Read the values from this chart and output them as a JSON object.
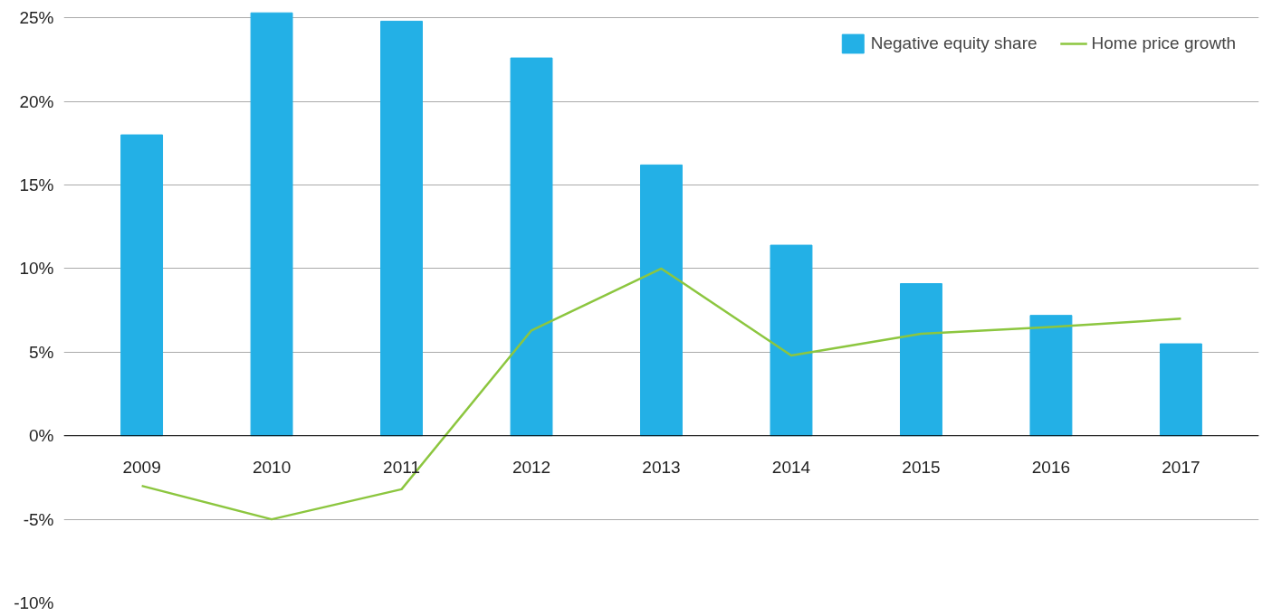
{
  "chart_data": {
    "type": "bar",
    "categories": [
      "2009",
      "2010",
      "2011",
      "2012",
      "2013",
      "2014",
      "2015",
      "2016",
      "2017"
    ],
    "series": [
      {
        "name": "Negative equity share",
        "color": "#23b0e6",
        "values": [
          18.0,
          25.3,
          24.8,
          22.6,
          16.2,
          11.4,
          9.1,
          7.2,
          5.5
        ]
      },
      {
        "name": "Home price growth",
        "type": "line",
        "color": "#8cc63f",
        "values": [
          -3.0,
          -5.0,
          -3.2,
          6.3,
          10.0,
          4.8,
          6.1,
          6.5,
          7.0
        ]
      }
    ],
    "ylim": [
      -10,
      25.5
    ],
    "yticks": [
      {
        "value": -10,
        "label": "-10%"
      },
      {
        "value": -5,
        "label": "-5%"
      },
      {
        "value": 0,
        "label": "0%"
      },
      {
        "value": 5,
        "label": "5%"
      },
      {
        "value": 10,
        "label": "10%"
      },
      {
        "value": 15,
        "label": "15%"
      },
      {
        "value": 20,
        "label": "20%"
      },
      {
        "value": 25,
        "label": "25%"
      }
    ],
    "grid": "y",
    "legend": "top right"
  }
}
